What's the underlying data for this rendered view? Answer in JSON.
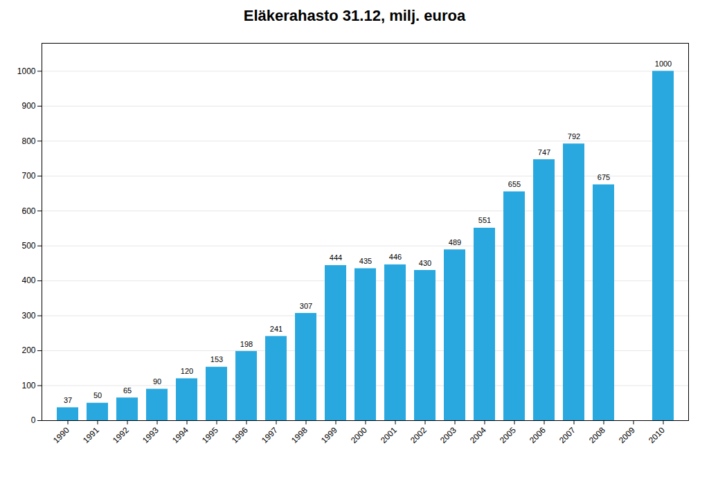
{
  "chart_data": {
    "type": "bar",
    "title": "Eläkerahasto 31.12, milj. euroa",
    "categories": [
      "1990",
      "1991",
      "1992",
      "1993",
      "1994",
      "1995",
      "1996",
      "1997",
      "1998",
      "1999",
      "2000",
      "2001",
      "2002",
      "2003",
      "2004",
      "2005",
      "2006",
      "2007",
      "2008",
      "2009",
      "2010"
    ],
    "values": [
      37,
      50,
      65,
      90,
      120,
      153,
      198,
      241,
      307,
      444,
      435,
      446,
      430,
      489,
      551,
      655,
      747,
      792,
      675,
      0,
      1000
    ],
    "color": "#29A8E0",
    "ylim": [
      0,
      1080
    ],
    "yticks": [
      0,
      100,
      200,
      300,
      400,
      500,
      600,
      700,
      800,
      900,
      1000
    ],
    "grid": true,
    "data_labels": true
  }
}
